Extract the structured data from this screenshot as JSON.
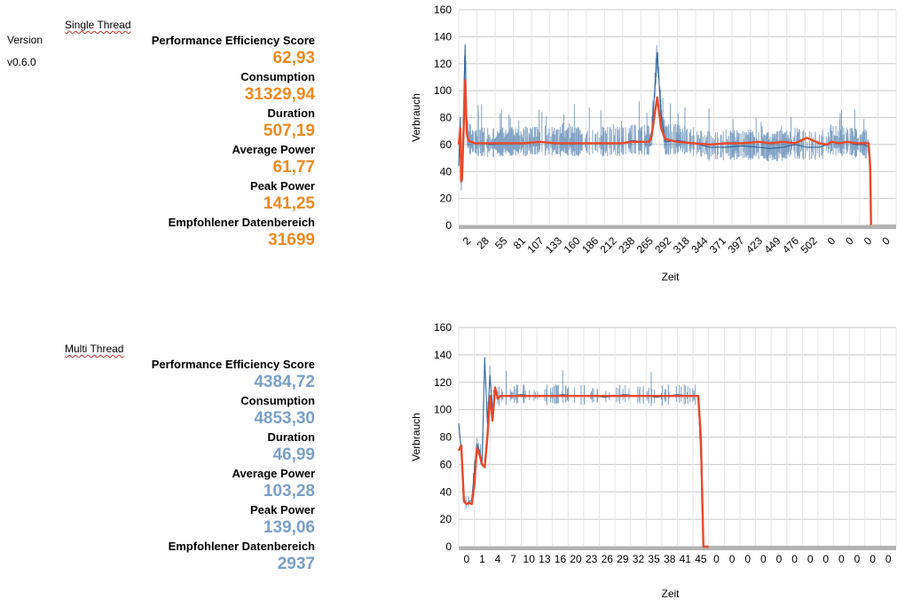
{
  "header": {
    "version_label": "Version",
    "version_value": "v0.6.0"
  },
  "single": {
    "section_title": "Single Thread",
    "color": "#ee8a22",
    "metrics": [
      {
        "label": "Performance Efficiency Score",
        "value": "62,93"
      },
      {
        "label": "Consumption",
        "value": "31329,94"
      },
      {
        "label": "Duration",
        "value": "507,19"
      },
      {
        "label": "Average Power",
        "value": "61,77"
      },
      {
        "label": "Peak Power",
        "value": "141,25"
      },
      {
        "label": "Empfohlener Datenbereich",
        "value": "31699"
      }
    ]
  },
  "multi": {
    "section_title": "Multi Thread",
    "color": "#7aa0c8",
    "metrics": [
      {
        "label": "Performance Efficiency Score",
        "value": "4384,72"
      },
      {
        "label": "Consumption",
        "value": "4853,30"
      },
      {
        "label": "Duration",
        "value": "46,99"
      },
      {
        "label": "Average Power",
        "value": "103,28"
      },
      {
        "label": "Peak Power",
        "value": "139,06"
      },
      {
        "label": "Empfohlener Datenbereich",
        "value": "2937"
      }
    ]
  },
  "chart_data": [
    {
      "type": "line",
      "title": "",
      "xlabel": "Zeit",
      "ylabel": "Verbrauch",
      "ylim": [
        0,
        160
      ],
      "yticks": [
        0,
        20,
        40,
        60,
        80,
        100,
        120,
        140,
        160
      ],
      "grid": true,
      "categories": [
        "2",
        "28",
        "55",
        "81",
        "107",
        "133",
        "160",
        "186",
        "212",
        "238",
        "265",
        "292",
        "318",
        "344",
        "371",
        "397",
        "423",
        "449",
        "476",
        "502",
        "0",
        "0",
        "0",
        "0"
      ],
      "series_colors": {
        "raw": "#1f5a96",
        "smoothed": "#e8482a",
        "baseline": "#b3b3b3"
      },
      "series": [
        {
          "name": "raw",
          "x": [
            0,
            2,
            3,
            4,
            6,
            8,
            10,
            12,
            15,
            20,
            30,
            40,
            60,
            80,
            100,
            120,
            140,
            160,
            180,
            200,
            215,
            225,
            230,
            235,
            238,
            245,
            250,
            255,
            270,
            290,
            310,
            330,
            350,
            370,
            385,
            400,
            415,
            430,
            445,
            455,
            460,
            470,
            480,
            490,
            500,
            506,
            508,
            509
          ],
          "y": [
            44,
            80,
            32,
            33,
            85,
            134,
            70,
            64,
            62,
            61,
            61,
            60,
            61,
            61,
            62,
            61,
            61,
            61,
            61,
            61,
            63,
            62,
            62,
            62,
            64,
            128,
            82,
            62,
            63,
            61,
            58,
            58,
            59,
            58,
            57,
            58,
            60,
            58,
            58,
            60,
            62,
            61,
            62,
            60,
            60,
            58,
            34,
            0
          ]
        },
        {
          "name": "smoothed",
          "x": [
            0,
            2,
            3,
            4,
            6,
            8,
            10,
            12,
            15,
            20,
            30,
            40,
            60,
            80,
            100,
            120,
            140,
            160,
            180,
            200,
            215,
            225,
            230,
            235,
            238,
            245,
            250,
            255,
            270,
            290,
            310,
            330,
            350,
            370,
            385,
            400,
            415,
            430,
            445,
            455,
            460,
            470,
            480,
            490,
            500,
            506,
            508,
            509
          ],
          "y": [
            60,
            72,
            33,
            34,
            70,
            108,
            68,
            63,
            62,
            61,
            61,
            61,
            61,
            61,
            62,
            61,
            61,
            61,
            61,
            61,
            62,
            62,
            62,
            62,
            66,
            95,
            72,
            64,
            62,
            61,
            60,
            61,
            61,
            62,
            61,
            62,
            61,
            65,
            61,
            60,
            62,
            61,
            62,
            61,
            61,
            61,
            44,
            0
          ]
        },
        {
          "name": "baseline",
          "x": [
            509,
            540
          ],
          "y": [
            0,
            0
          ]
        }
      ]
    },
    {
      "type": "line",
      "title": "",
      "xlabel": "Zeit",
      "ylabel": "Verbrauch",
      "ylim": [
        0,
        160
      ],
      "yticks": [
        0,
        20,
        40,
        60,
        80,
        100,
        120,
        140,
        160
      ],
      "grid": true,
      "categories": [
        "0",
        "1",
        "4",
        "7",
        "10",
        "13",
        "16",
        "20",
        "23",
        "26",
        "29",
        "32",
        "35",
        "38",
        "41",
        "45",
        "0",
        "0",
        "0",
        "0",
        "0",
        "0",
        "0",
        "0",
        "0",
        "0",
        "0",
        "0"
      ],
      "series_colors": {
        "raw": "#1f5a96",
        "smoothed": "#e8482a",
        "baseline": "#b3b3b3"
      },
      "series": [
        {
          "name": "raw",
          "x": [
            0,
            0.5,
            1,
            1.5,
            2,
            2.5,
            3,
            3.5,
            4,
            4.5,
            5,
            5.5,
            6,
            6.5,
            7,
            7.5,
            8,
            10,
            12,
            14,
            16,
            18,
            20,
            22,
            24,
            26,
            28,
            30,
            32,
            34,
            36,
            38,
            40,
            42,
            44,
            46,
            46.5,
            47,
            47.5,
            48
          ],
          "y": [
            90,
            70,
            35,
            31,
            33,
            34,
            55,
            75,
            70,
            62,
            138,
            90,
            125,
            100,
            116,
            108,
            110,
            110,
            111,
            110,
            110,
            110,
            111,
            110,
            110,
            110,
            109,
            110,
            111,
            110,
            110,
            109,
            110,
            111,
            110,
            110,
            66,
            1,
            0,
            0
          ]
        },
        {
          "name": "smoothed",
          "x": [
            0,
            0.5,
            1,
            1.5,
            2,
            2.5,
            3,
            3.5,
            4,
            4.5,
            5,
            5.5,
            6,
            6.5,
            7,
            7.5,
            8,
            10,
            12,
            14,
            16,
            18,
            20,
            22,
            24,
            26,
            28,
            30,
            32,
            34,
            36,
            38,
            40,
            42,
            44,
            46,
            46.5,
            47,
            47.5,
            48
          ],
          "y": [
            70,
            74,
            33,
            31,
            32,
            31,
            45,
            72,
            67,
            60,
            58,
            80,
            110,
            92,
            116,
            108,
            110,
            110,
            110,
            110,
            110,
            110,
            110,
            110,
            110,
            110,
            110,
            110,
            110,
            110,
            110,
            110,
            110,
            110,
            110,
            110,
            80,
            0,
            0,
            0
          ]
        },
        {
          "name": "baseline",
          "x": [
            48,
            84
          ],
          "y": [
            0,
            0
          ]
        }
      ]
    }
  ]
}
